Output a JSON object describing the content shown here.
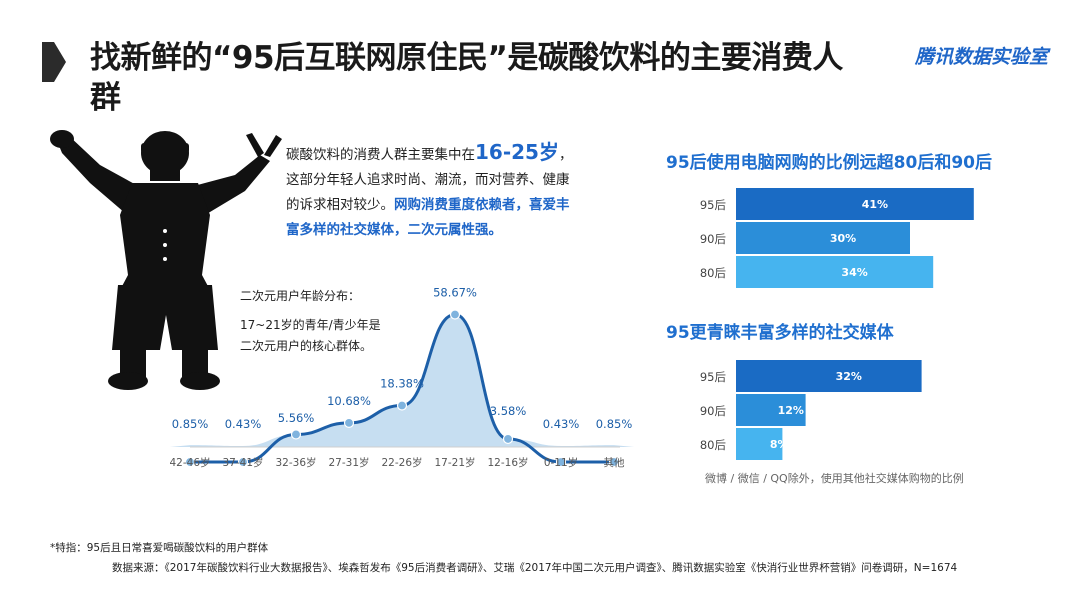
{
  "header": {
    "title": "找新鲜的“95后互联网原住民”是碳酸饮料的主要消费人群",
    "brand": "腾讯数据实验室"
  },
  "intro": {
    "line1_pre": "碳酸饮料的消费人群主要集中在",
    "line1_age": "16-25岁",
    "line1_post": "，",
    "line2": "这部分年轻人追求时尚、潮流，而对营养、健康",
    "line3_pre": "的诉求相对较少。",
    "line3_hl": "网购消费重度依赖者，喜爱丰",
    "line4_hl": "富多样的社交媒体，二次元属性强。"
  },
  "distribution": {
    "title": "二次元用户年龄分布：",
    "note": "17~21岁的青年/青少年是二次元用户的核心群体。"
  },
  "bars_note": "微博 / 微信 / QQ除外，使用其他社交媒体购物的比例",
  "footer": {
    "footnote": "*特指：95后且日常喜爱喝碳酸饮料的用户群体",
    "source": "数据来源：《2017年碳酸饮料行业大数据报告》、埃森哲发布《95后消费者调研》、艾瑞《2017年中国二次元用户调查》、腾讯数据实验室《快消行业世界杯营销》问卷调研，N=1674"
  },
  "colors": {
    "bar_dark": "#1a6bc4",
    "bar_mid": "#2b8ed9",
    "bar_light": "#46b4ef",
    "line": "#1d5fa8",
    "area": "#bcd8ef",
    "accent": "#1f66c8"
  },
  "chart_data": [
    {
      "type": "line",
      "categories": [
        "42-46岁",
        "37-41岁",
        "32-36岁",
        "27-31岁",
        "22-26岁",
        "17-21岁",
        "12-16岁",
        "0-11岁",
        "其他"
      ],
      "values": [
        0.85,
        0.43,
        5.56,
        10.68,
        18.38,
        58.67,
        3.58,
        0.43,
        0.85
      ],
      "labels": [
        "0.85%",
        "0.43%",
        "5.56%",
        "10.68%",
        "18.38%",
        "58.67%",
        "3.58%",
        "0.43%",
        "0.85%"
      ],
      "ylim": [
        0,
        62
      ]
    },
    {
      "type": "bar",
      "title": "95后使用电脑网购的比例远超80后和90后",
      "categories": [
        "95后",
        "90后",
        "80后"
      ],
      "values": [
        41,
        30,
        34
      ],
      "labels": [
        "41%",
        "30%",
        "34%"
      ],
      "xlim": [
        0,
        50
      ]
    },
    {
      "type": "bar",
      "title": "95更青睐丰富多样的社交媒体",
      "categories": [
        "95后",
        "90后",
        "80后"
      ],
      "values": [
        32,
        12,
        8
      ],
      "labels": [
        "32%",
        "12%",
        "8%"
      ],
      "xlim": [
        0,
        50
      ]
    }
  ]
}
